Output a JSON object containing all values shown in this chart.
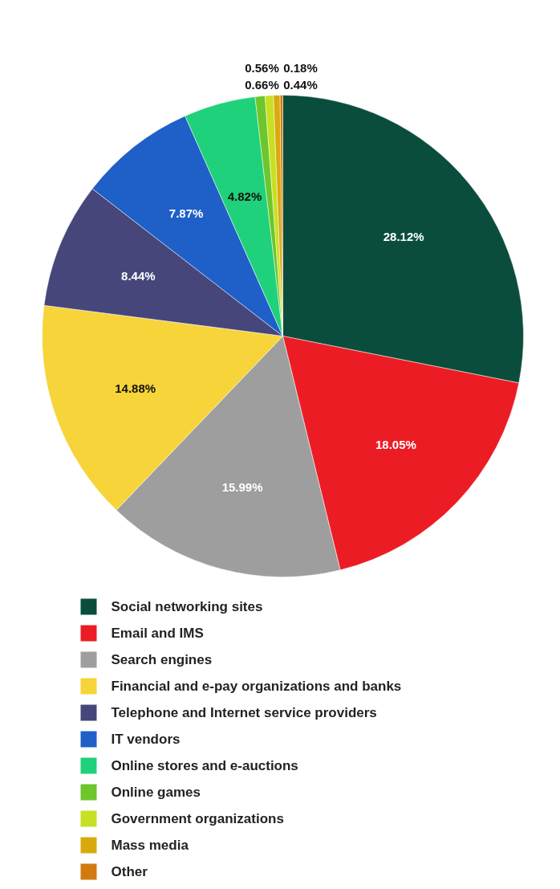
{
  "chart_data": {
    "type": "pie",
    "categories": [
      "Social networking sites",
      "Email and IMS",
      "Search engines",
      "Financial and e-pay organizations and banks",
      "Telephone and Internet service providers",
      "IT vendors",
      "Online stores and e-auctions",
      "Online games",
      "Government organizations",
      "Mass media",
      "Other"
    ],
    "values": [
      28.12,
      18.05,
      15.99,
      14.88,
      8.44,
      7.87,
      4.82,
      0.66,
      0.56,
      0.44,
      0.18
    ],
    "colors": [
      "#0b4d3c",
      "#ec1c24",
      "#9e9e9e",
      "#f6d43a",
      "#46467a",
      "#1f5fc8",
      "#1fd17a",
      "#6cc62c",
      "#c8e024",
      "#d9a90e",
      "#d27a10"
    ],
    "value_labels": [
      "28.12%",
      "18.05%",
      "15.99%",
      "14.88%",
      "8.44%",
      "7.87%",
      "4.82%",
      "0.66%",
      "0.56%",
      "0.44%",
      "0.18%"
    ],
    "legend": "bottom"
  }
}
